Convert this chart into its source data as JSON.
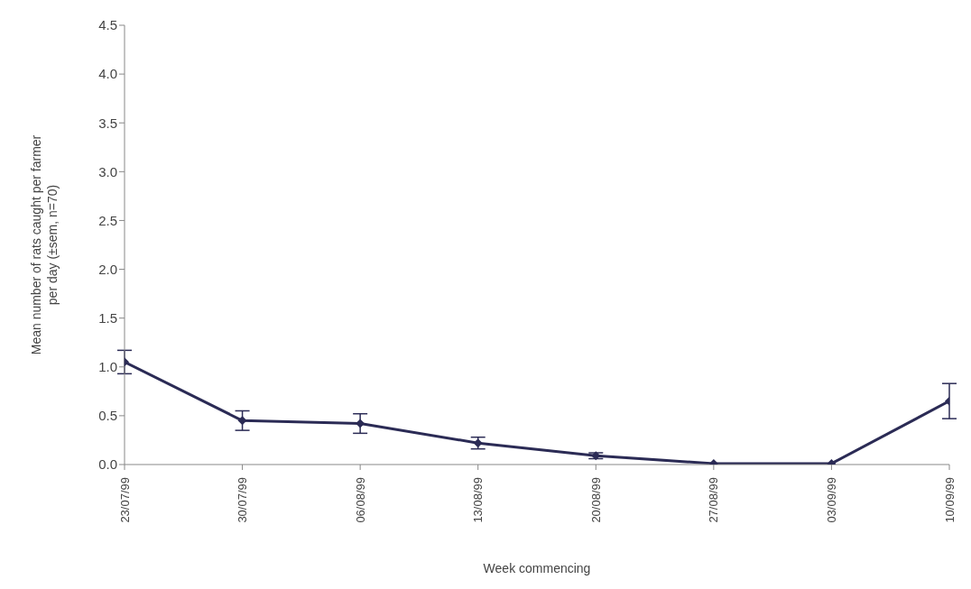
{
  "chart_data": {
    "type": "line",
    "xlabel": "Week commencing",
    "ylabel": "Mean number of rats caught per farmer per day (±sem, n=70)",
    "categories": [
      "23/07/99",
      "30/07/99",
      "06/08/99",
      "13/08/99",
      "20/08/99",
      "27/08/99",
      "03/09/99",
      "10/09/99"
    ],
    "values": [
      1.05,
      0.45,
      0.42,
      0.22,
      0.09,
      0.01,
      0.01,
      0.65
    ],
    "errors": [
      0.12,
      0.1,
      0.1,
      0.06,
      0.03,
      null,
      null,
      0.18
    ],
    "color": "#2b2b55",
    "marker": "diamond",
    "line_style": "solid",
    "ylim": [
      0,
      4.5
    ],
    "yticks": [
      {
        "value": 0,
        "label": "0.0"
      },
      0.5,
      {
        "value": 1,
        "label": "1.0"
      },
      1.5,
      {
        "value": 2,
        "label": "2.0"
      },
      2.5,
      {
        "value": 3,
        "label": "3.0"
      },
      3.5,
      {
        "value": 4,
        "label": "4.0"
      },
      4.5
    ],
    "grid": false
  }
}
